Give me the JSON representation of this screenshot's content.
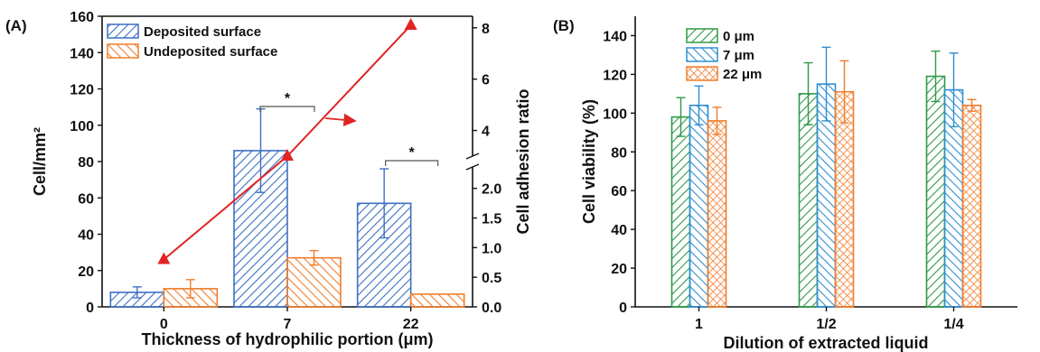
{
  "chart_data": [
    {
      "panel_label": "(A)",
      "type": "bar",
      "xlabel": "Thickness of hydrophilic portion (μm)",
      "ylabel": "Cell/mm²",
      "y2label": "Cell adhesion ratio",
      "categories": [
        "0",
        "7",
        "22"
      ],
      "ylim": [
        0,
        160
      ],
      "yticks": [
        "0",
        "20",
        "40",
        "60",
        "80",
        "100",
        "120",
        "140",
        "160"
      ],
      "y2_axis_broken": true,
      "y2ticks_lower": [
        "0.0",
        "0.5",
        "1.0",
        "1.5",
        "2.0"
      ],
      "y2ticks_upper": [
        "4",
        "6",
        "8"
      ],
      "series": [
        {
          "name": "Deposited surface",
          "values": [
            8,
            86,
            57
          ],
          "err": [
            3,
            23,
            19
          ],
          "color": "#3d6fc4",
          "hatch": "forward"
        },
        {
          "name": "Undeposited surface",
          "values": [
            10,
            27,
            7
          ],
          "err": [
            5,
            4,
            0
          ],
          "color": "#f07d2c",
          "hatch": "back"
        }
      ],
      "ratio_series": {
        "x": [
          "0",
          "7",
          "22"
        ],
        "values": [
          0.8,
          3.0,
          8.1
        ],
        "color": "#e02424"
      },
      "significance": [
        {
          "between": "7 deposited vs undeposited",
          "label": "*"
        },
        {
          "between": "22 deposited vs undeposited",
          "label": "*"
        }
      ],
      "legend": "top-left"
    },
    {
      "panel_label": "(B)",
      "type": "bar",
      "xlabel": "Dilution of extracted liquid",
      "ylabel": "Cell viability (%)",
      "categories": [
        "1",
        "1/2",
        "1/4"
      ],
      "ylim": [
        0,
        150
      ],
      "yticks": [
        "0",
        "20",
        "40",
        "60",
        "80",
        "100",
        "120",
        "140"
      ],
      "series": [
        {
          "name": "0 μm",
          "values": [
            98,
            110,
            119
          ],
          "err": [
            10,
            16,
            13
          ],
          "color": "#2e9a47",
          "hatch": "forward"
        },
        {
          "name": "7 μm",
          "values": [
            104,
            115,
            112
          ],
          "err": [
            10,
            19,
            19
          ],
          "color": "#2e8fd1",
          "hatch": "back"
        },
        {
          "name": "22 μm",
          "values": [
            96,
            111,
            104
          ],
          "err": [
            7,
            16,
            3
          ],
          "color": "#f07d2c",
          "hatch": "cross"
        }
      ],
      "legend": "top-left"
    }
  ]
}
